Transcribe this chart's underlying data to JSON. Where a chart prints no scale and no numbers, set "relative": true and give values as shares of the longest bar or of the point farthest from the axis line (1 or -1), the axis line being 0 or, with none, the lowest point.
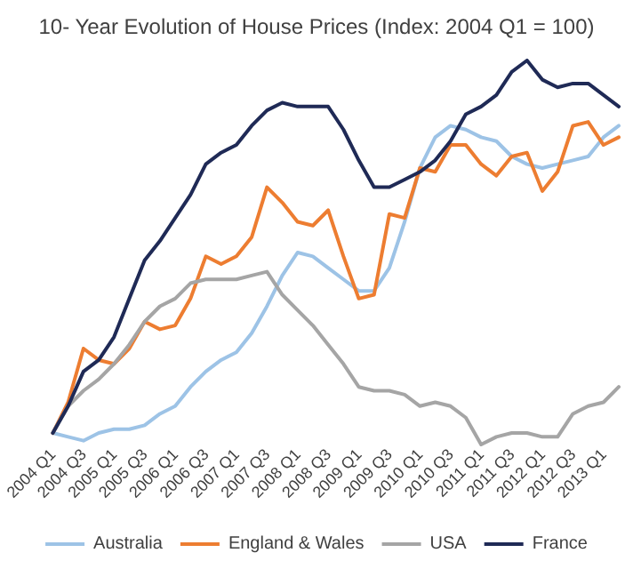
{
  "chart_data": {
    "type": "line",
    "title": "10- Year Evolution of House Prices (Index: 2004 Q1 = 100)",
    "relative": true,
    "legend": "bottom",
    "marker": "none",
    "categories": [
      "2004 Q1",
      null,
      "2004 Q3",
      null,
      "2005 Q1",
      null,
      "2005 Q3",
      null,
      "2006 Q1",
      null,
      "2006 Q3",
      null,
      "2007 Q1",
      null,
      "2007 Q3",
      null,
      "2008 Q1",
      null,
      "2008 Q3",
      null,
      "2009 Q1",
      null,
      "2009 Q3",
      null,
      "2010 Q1",
      null,
      "2010 Q3",
      null,
      "2011 Q1",
      null,
      "2011 Q3",
      null,
      "2012 Q1",
      null,
      "2012 Q3",
      null,
      "2013 Q1",
      null
    ],
    "series": [
      {
        "name": "Australia",
        "color": "#9dc3e6",
        "values": [
          0.03,
          0.02,
          0.01,
          0.03,
          0.04,
          0.04,
          0.05,
          0.08,
          0.1,
          0.15,
          0.19,
          0.22,
          0.24,
          0.29,
          0.36,
          0.44,
          0.5,
          0.49,
          0.46,
          0.43,
          0.4,
          0.4,
          0.46,
          0.58,
          0.72,
          0.8,
          0.83,
          0.82,
          0.8,
          0.79,
          0.75,
          0.73,
          0.72,
          0.73,
          0.74,
          0.75,
          0.8,
          0.83
        ]
      },
      {
        "name": "England & Wales",
        "color": "#ed7d31",
        "values": [
          0.03,
          0.11,
          0.25,
          0.22,
          0.21,
          0.25,
          0.32,
          0.3,
          0.31,
          0.38,
          0.49,
          0.47,
          0.49,
          0.54,
          0.67,
          0.63,
          0.58,
          0.57,
          0.61,
          0.49,
          0.38,
          0.39,
          0.6,
          0.59,
          0.72,
          0.71,
          0.78,
          0.78,
          0.73,
          0.7,
          0.75,
          0.76,
          0.66,
          0.71,
          0.83,
          0.84,
          0.78,
          0.8
        ]
      },
      {
        "name": "USA",
        "color": "#a5a5a5",
        "values": [
          0.03,
          0.1,
          0.14,
          0.17,
          0.21,
          0.26,
          0.32,
          0.36,
          0.38,
          0.42,
          0.43,
          0.43,
          0.43,
          0.44,
          0.45,
          0.39,
          0.35,
          0.31,
          0.26,
          0.21,
          0.15,
          0.14,
          0.14,
          0.13,
          0.1,
          0.11,
          0.1,
          0.07,
          0.0,
          0.02,
          0.03,
          0.03,
          0.02,
          0.02,
          0.08,
          0.1,
          0.11,
          0.15
        ]
      },
      {
        "name": "France",
        "color": "#1f2a56",
        "values": [
          0.03,
          0.1,
          0.19,
          0.22,
          0.28,
          0.38,
          0.48,
          0.53,
          0.59,
          0.65,
          0.73,
          0.76,
          0.78,
          0.83,
          0.87,
          0.89,
          0.88,
          0.88,
          0.88,
          0.82,
          0.74,
          0.67,
          0.67,
          0.69,
          0.71,
          0.74,
          0.79,
          0.86,
          0.88,
          0.91,
          0.97,
          1.0,
          0.95,
          0.93,
          0.94,
          0.94,
          0.91,
          0.88
        ]
      }
    ]
  }
}
